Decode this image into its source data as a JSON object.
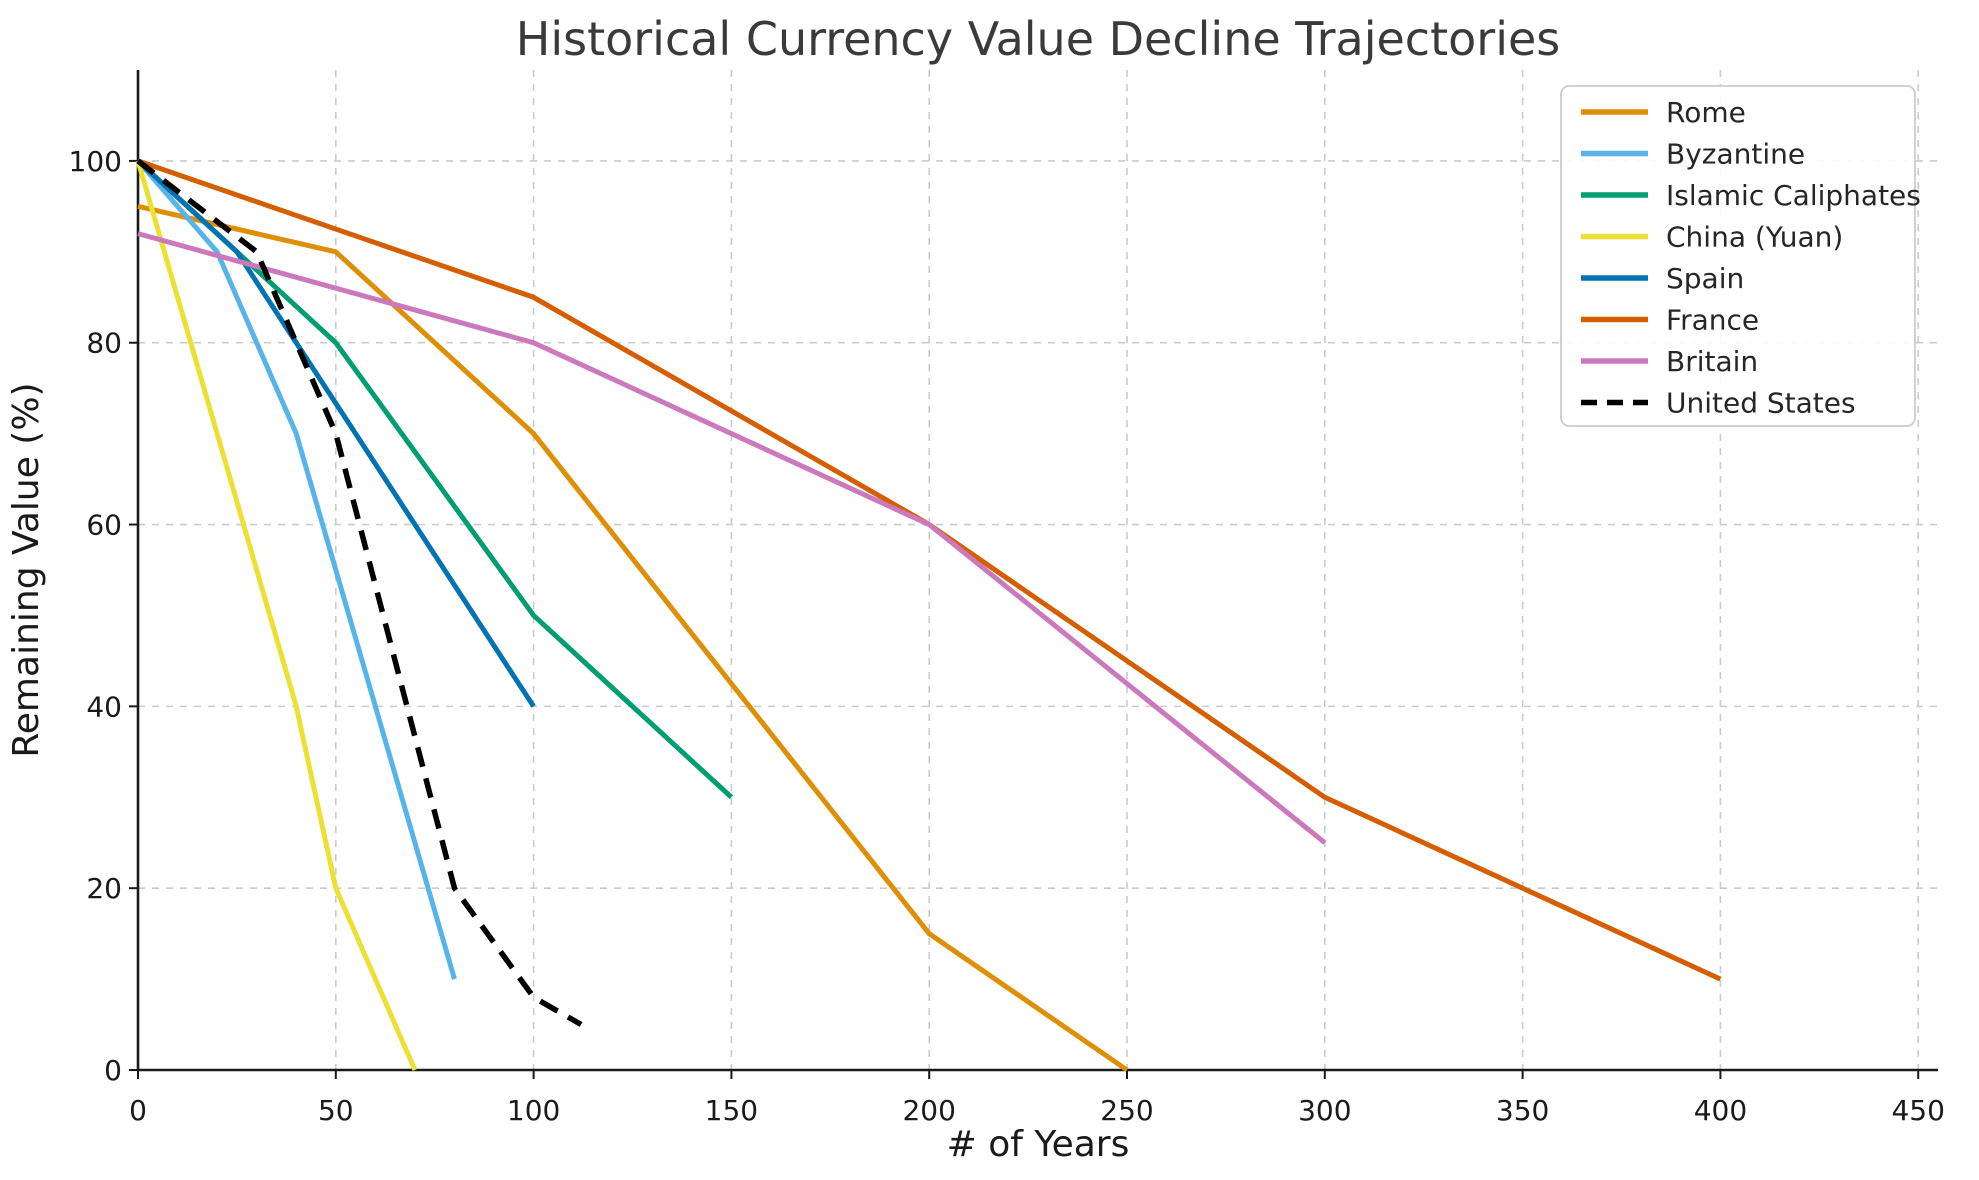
{
  "chart_data": {
    "type": "line",
    "title": "Historical Currency Value Decline Trajectories",
    "xlabel": "# of Years",
    "ylabel": "Remaining Value (%)",
    "xlim": [
      0,
      455
    ],
    "ylim": [
      0,
      110
    ],
    "x_ticks": [
      0,
      50,
      100,
      150,
      200,
      250,
      300,
      350,
      400,
      450
    ],
    "y_ticks": [
      0,
      20,
      40,
      60,
      80,
      100
    ],
    "grid": true,
    "grid_color": "#cbcbcb",
    "axis_color": "#1a1a1a",
    "title_color": "#3a3a3a",
    "legend_position": "upper right",
    "series": [
      {
        "name": "Rome",
        "color": "#DE8F05",
        "dash": "solid",
        "points": [
          [
            0,
            95
          ],
          [
            50,
            90
          ],
          [
            100,
            70
          ],
          [
            200,
            15
          ],
          [
            250,
            0
          ]
        ]
      },
      {
        "name": "Byzantine",
        "color": "#56B4E9",
        "dash": "solid",
        "points": [
          [
            0,
            100
          ],
          [
            20,
            90
          ],
          [
            40,
            70
          ],
          [
            80,
            10
          ]
        ]
      },
      {
        "name": "Islamic Caliphates",
        "color": "#029E73",
        "dash": "solid",
        "points": [
          [
            0,
            100
          ],
          [
            50,
            80
          ],
          [
            100,
            50
          ],
          [
            150,
            30
          ]
        ]
      },
      {
        "name": "China (Yuan)",
        "color": "#ECE133",
        "dash": "solid",
        "points": [
          [
            0,
            100
          ],
          [
            40,
            40
          ],
          [
            50,
            20
          ],
          [
            70,
            0
          ]
        ]
      },
      {
        "name": "Spain",
        "color": "#0173B2",
        "dash": "solid",
        "points": [
          [
            0,
            100
          ],
          [
            25,
            90
          ],
          [
            100,
            40
          ]
        ]
      },
      {
        "name": "France",
        "color": "#D55E00",
        "dash": "solid",
        "points": [
          [
            0,
            100
          ],
          [
            100,
            85
          ],
          [
            200,
            60
          ],
          [
            300,
            30
          ],
          [
            400,
            10
          ]
        ]
      },
      {
        "name": "Britain",
        "color": "#CC78BC",
        "dash": "solid",
        "points": [
          [
            0,
            92
          ],
          [
            100,
            80
          ],
          [
            200,
            60
          ],
          [
            300,
            25
          ]
        ]
      },
      {
        "name": "United States",
        "color": "#000000",
        "dash": "dashed",
        "points": [
          [
            0,
            100
          ],
          [
            30,
            90
          ],
          [
            50,
            70
          ],
          [
            80,
            20
          ],
          [
            100,
            8
          ],
          [
            112,
            5
          ]
        ]
      }
    ]
  }
}
